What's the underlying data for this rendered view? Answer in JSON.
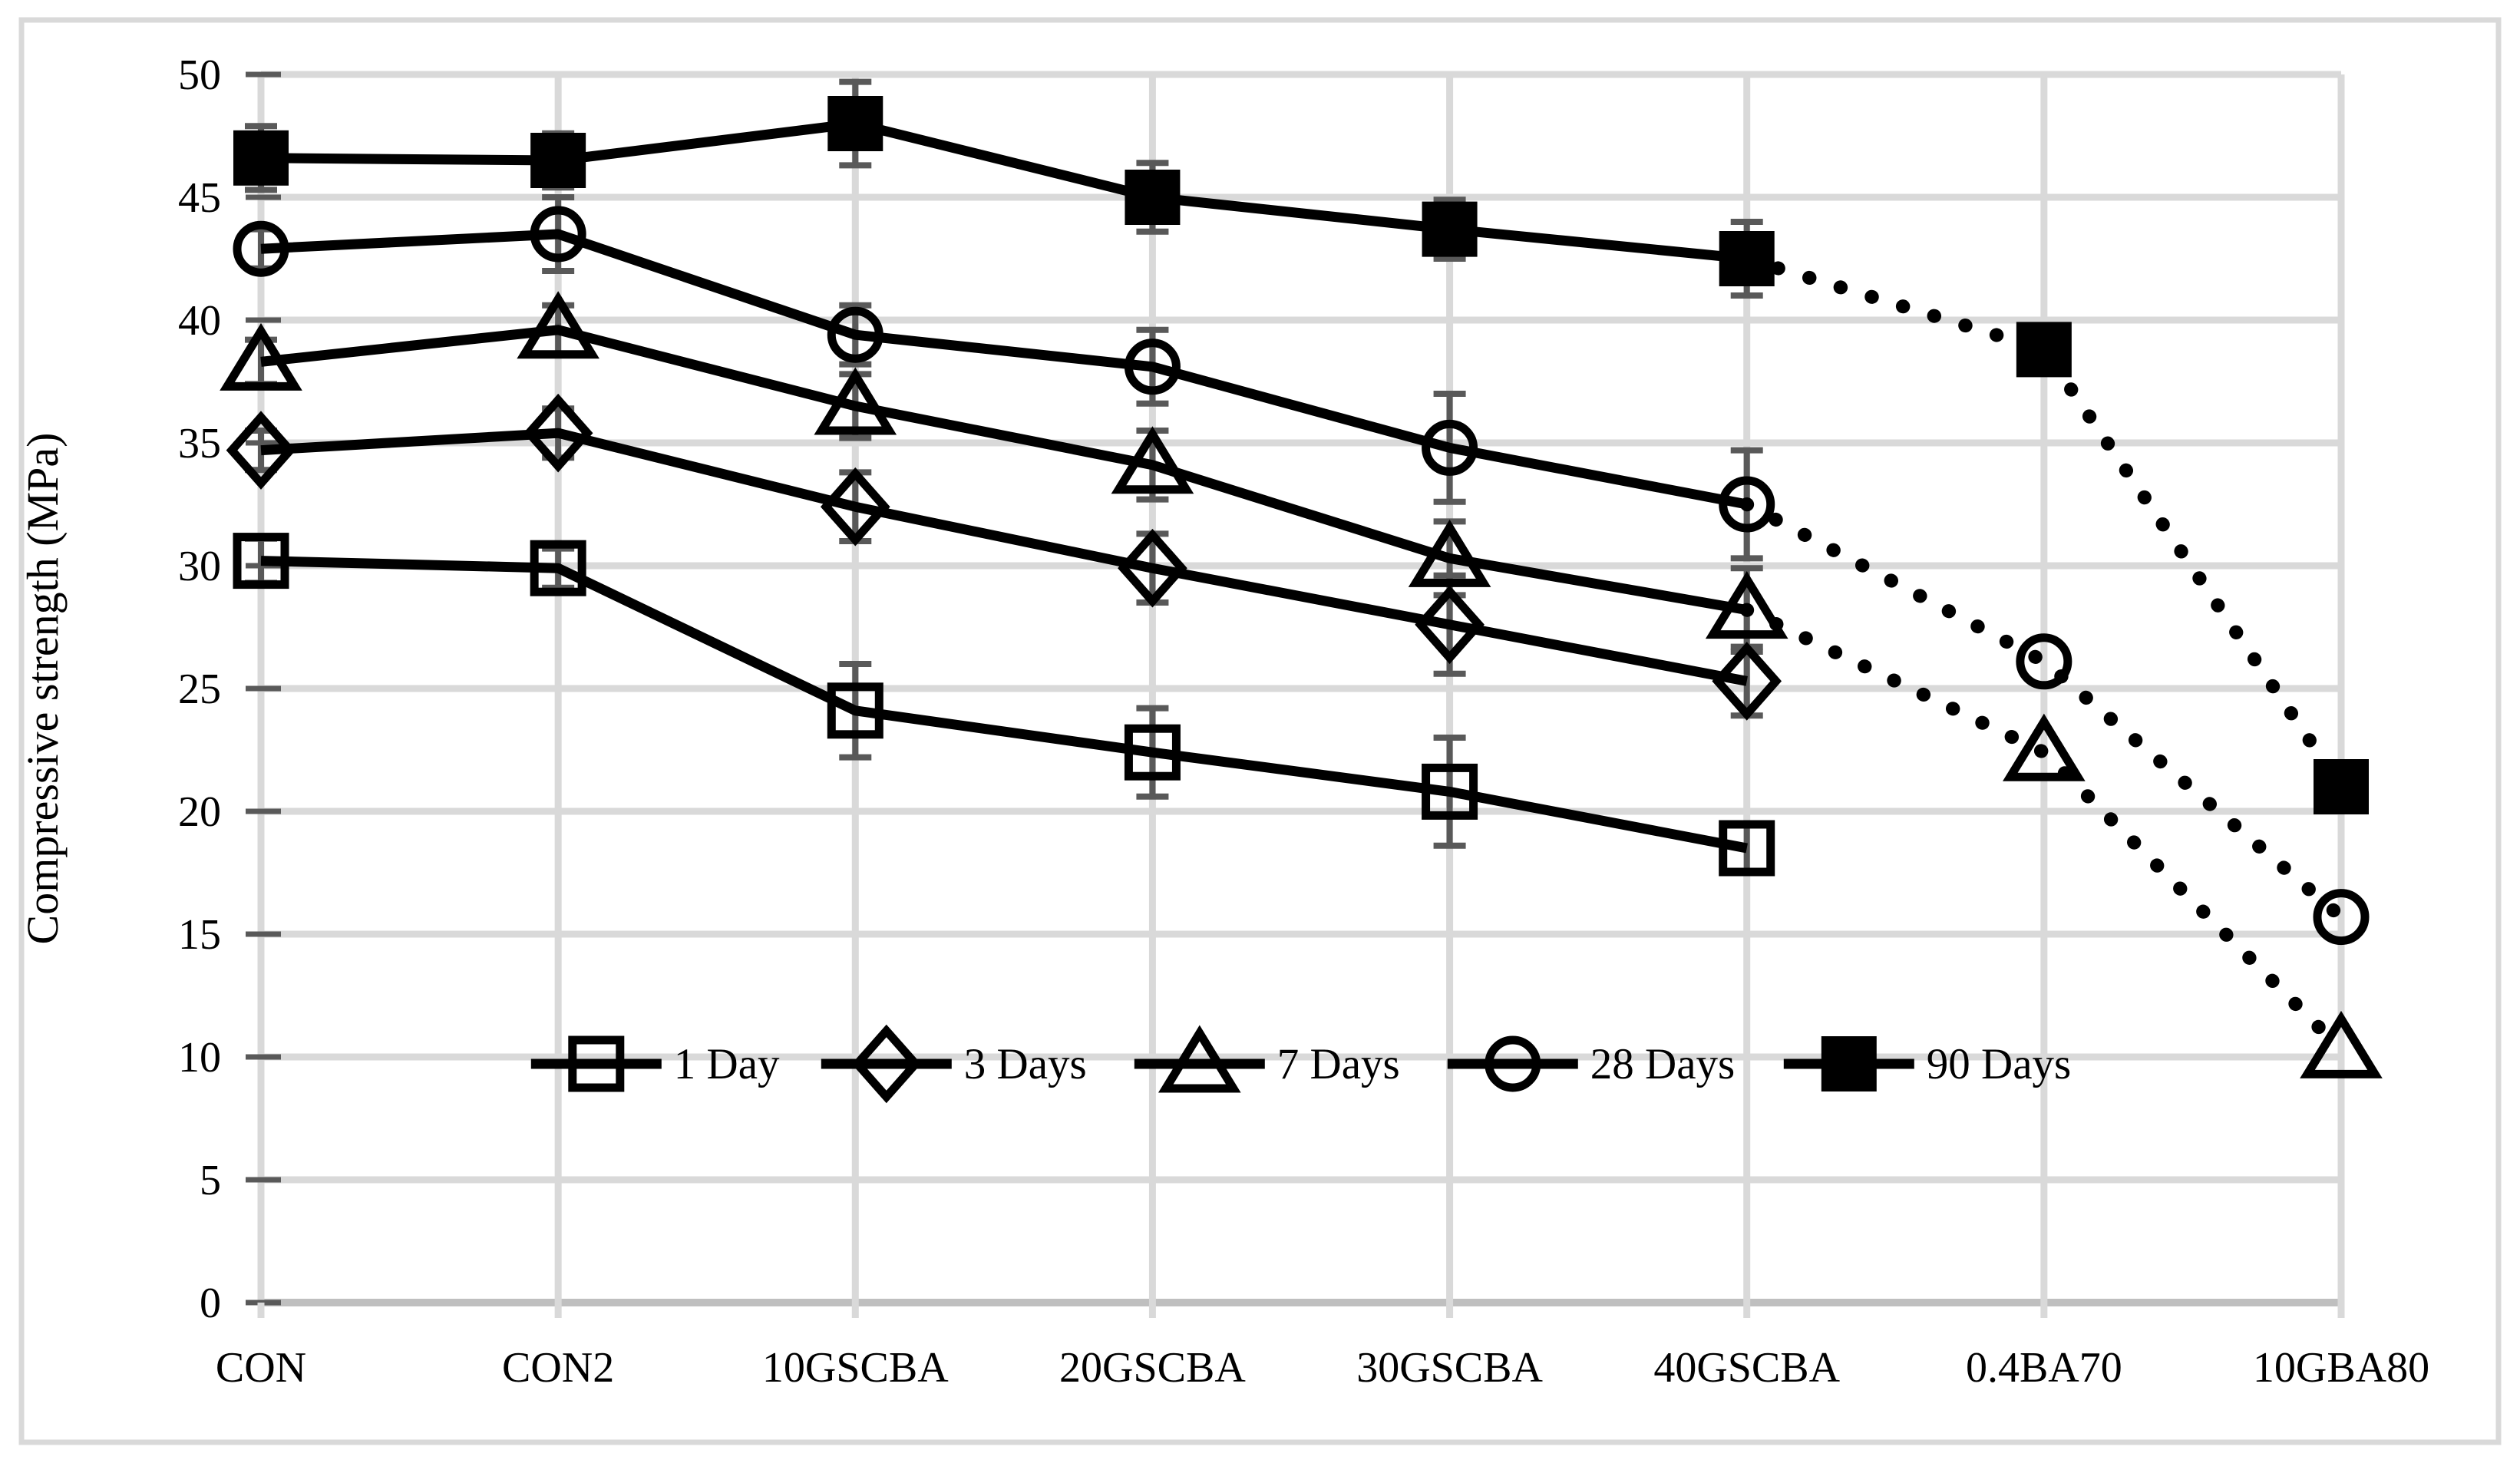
{
  "chart_data": {
    "type": "line",
    "title": "",
    "xlabel": "",
    "ylabel": "Compressive strength (MPa)",
    "ylim": [
      0,
      50
    ],
    "ytick_step": 5,
    "grid": true,
    "legend_position": "inside-bottom",
    "background_color": "#ffffff",
    "categories": [
      "CON",
      "CON2",
      "10GSCBA",
      "20GSCBA",
      "30GSCBA",
      "40GSCBA",
      "0.4BA70",
      "10GBA80"
    ],
    "dotted_from_index": 5,
    "series": [
      {
        "name": "1 Day",
        "marker": "open-square",
        "values": [
          30.2,
          29.9,
          24.1,
          22.4,
          20.8,
          18.5,
          null,
          null
        ],
        "errors": [
          0.9,
          0.8,
          1.9,
          1.8,
          2.2,
          1.0,
          null,
          null
        ]
      },
      {
        "name": "3 Days",
        "marker": "open-diamond",
        "values": [
          34.7,
          35.4,
          32.4,
          29.9,
          27.6,
          25.3,
          null,
          null
        ],
        "errors": [
          0.8,
          1.0,
          1.4,
          1.4,
          2.0,
          1.4,
          null,
          null
        ]
      },
      {
        "name": "7 Days",
        "marker": "open-triangle",
        "values": [
          38.3,
          39.6,
          36.5,
          34.1,
          30.3,
          28.2,
          22.4,
          10.3
        ],
        "errors": [
          0.9,
          1.0,
          1.3,
          1.4,
          1.5,
          1.7,
          null,
          null
        ]
      },
      {
        "name": "28 Days",
        "marker": "open-circle",
        "values": [
          42.9,
          43.5,
          39.4,
          38.1,
          34.8,
          32.5,
          26.1,
          15.7
        ],
        "errors": [
          0.8,
          1.5,
          1.2,
          1.5,
          2.2,
          2.2,
          null,
          null
        ]
      },
      {
        "name": "90 Days",
        "marker": "filled-square",
        "values": [
          46.6,
          46.5,
          48.0,
          45.0,
          43.7,
          42.5,
          38.8,
          21.0
        ],
        "errors": [
          1.3,
          1.1,
          1.7,
          1.4,
          1.2,
          1.5,
          null,
          null
        ]
      }
    ],
    "colors": {
      "line": "#000000",
      "gridline": "#d9d9d9",
      "axis": "#bfbfbf",
      "tick": "#595959",
      "error_bar": "#595959",
      "border": "#d9d9d9",
      "text": "#000000"
    }
  }
}
